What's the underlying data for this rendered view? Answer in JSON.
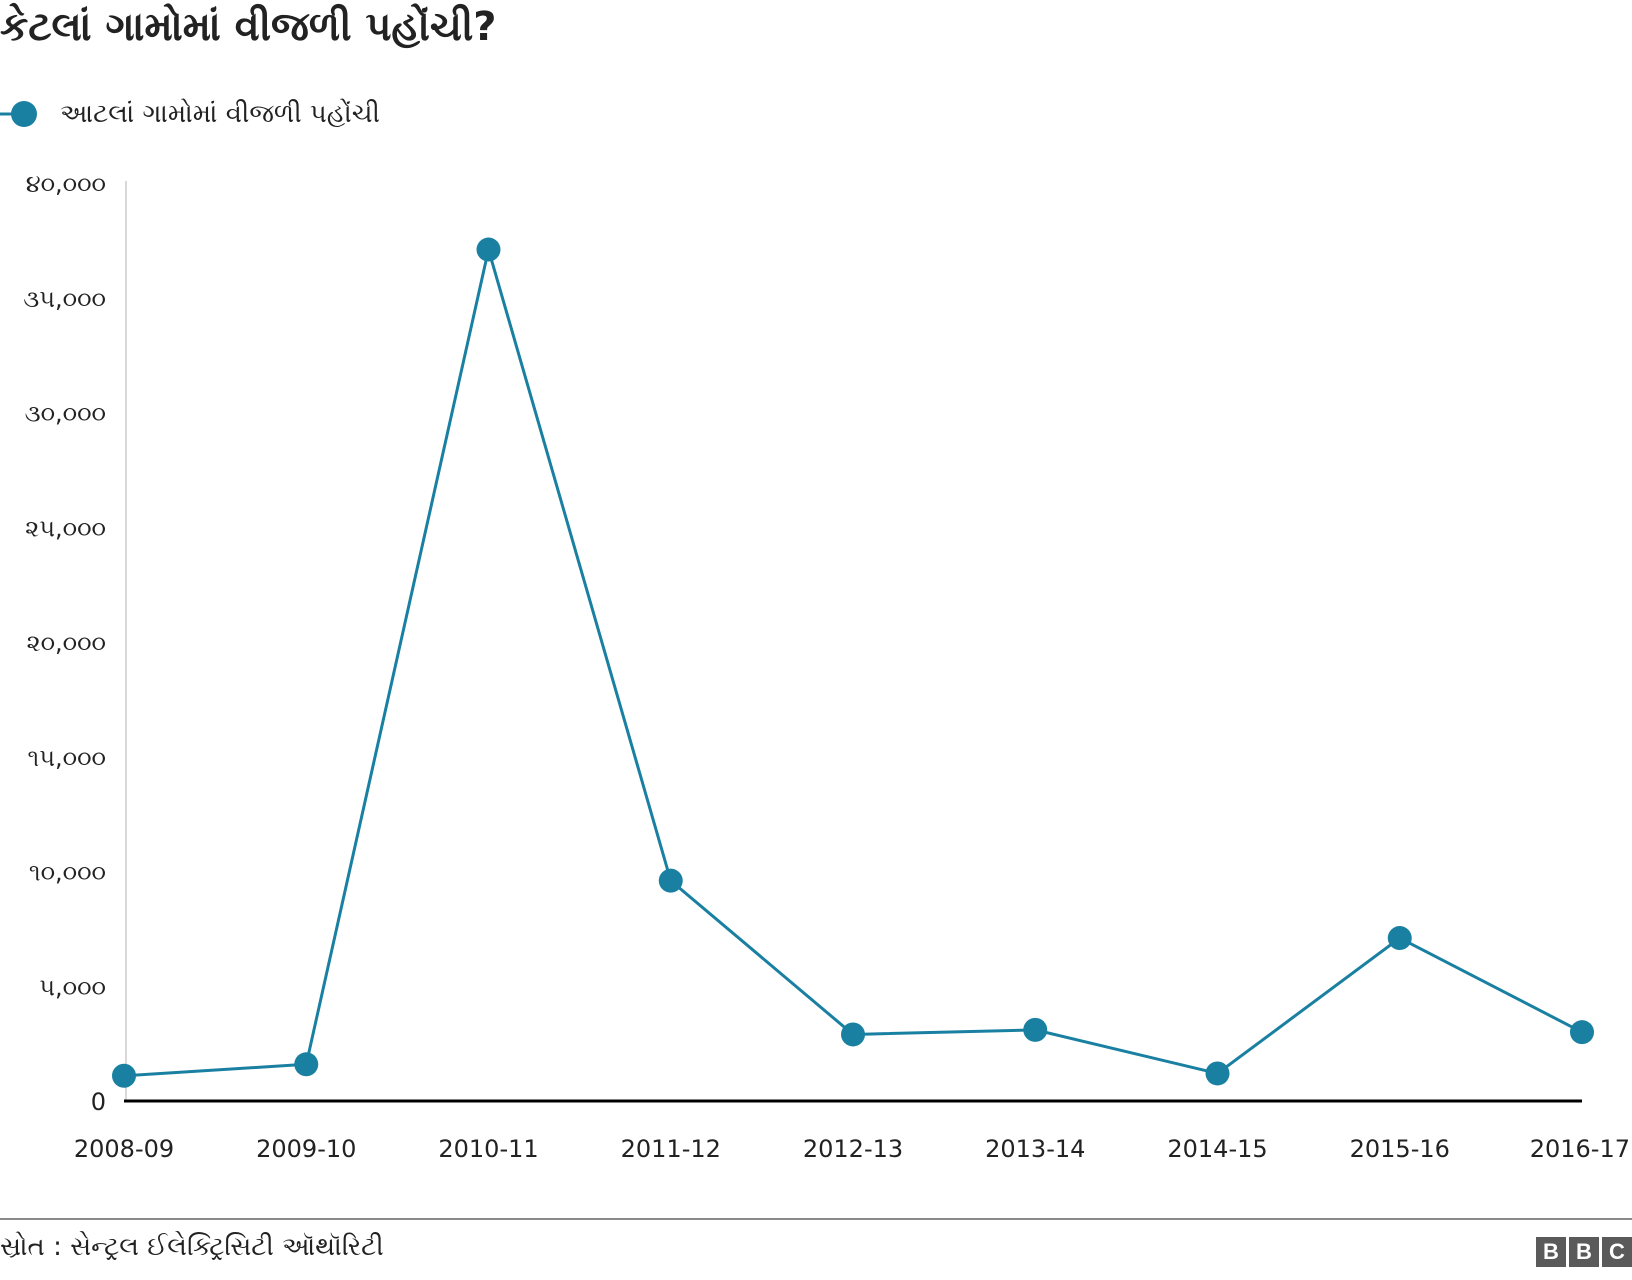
{
  "title": "કેટલાં ગામોમાં વીજળી પહોંચી?",
  "legend": {
    "label": "આટલાં ગામોમાં વીજળી પહોંચી"
  },
  "source": "સ્રોત : સેન્ટ્રલ ઈલેક્ટ્રિસિટી ઑથૉરિટી",
  "logo": [
    "B",
    "B",
    "C"
  ],
  "colors": {
    "series": "#1a80a2",
    "axis": "#000000",
    "text": "#222222"
  },
  "chart_data": {
    "type": "line",
    "title": "કેટલાં ગામોમાં વીજળી પહોંચી?",
    "xlabel": "",
    "ylabel": "",
    "ylim": [
      0,
      40000
    ],
    "grid": false,
    "legend_position": "top-left",
    "categories": [
      "2008-09",
      "2009-10",
      "2010-11",
      "2011-12",
      "2012-13",
      "2013-14",
      "2014-15",
      "2015-16",
      "2016-17"
    ],
    "y_ticks": [
      0,
      5000,
      10000,
      15000,
      20000,
      25000,
      30000,
      35000,
      40000
    ],
    "y_tick_labels": [
      "0",
      "૫,૦૦૦",
      "૧૦,૦૦૦",
      "૧૫,૦૦૦",
      "૨૦,૦૦૦",
      "૨૫,૦૦૦",
      "૩૦,૦૦૦",
      "૩૫,૦૦૦",
      "૪૦,૦૦૦"
    ],
    "series": [
      {
        "name": "આટલાં ગામોમાં વીજળી પહોંચી",
        "values": [
          1100,
          1600,
          37100,
          9600,
          2900,
          3100,
          1200,
          7100,
          3000
        ]
      }
    ]
  }
}
